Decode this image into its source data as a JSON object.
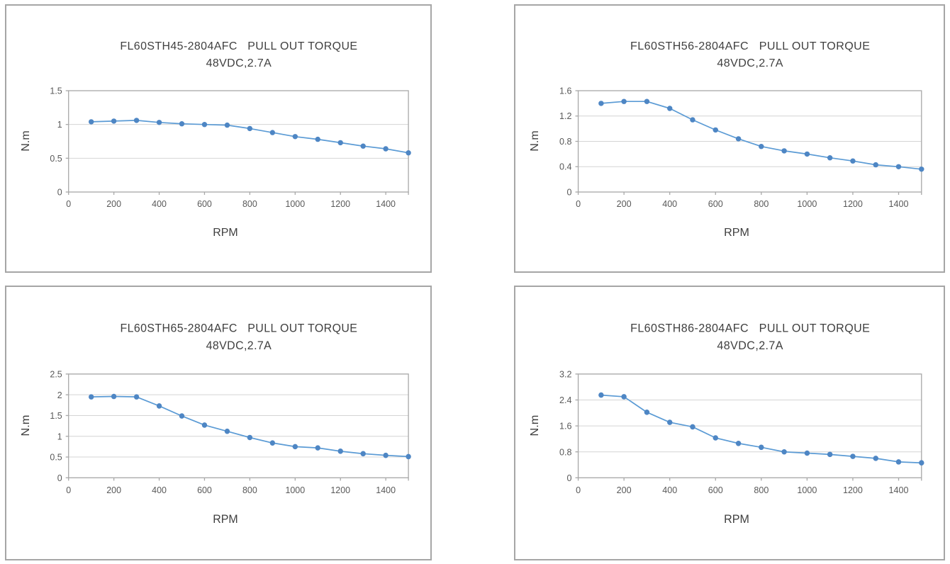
{
  "styles": {
    "line_color": "#5b9bd5",
    "marker_color": "#4e86c4",
    "grid_color": "#d4d4d4",
    "axis_color": "#a8a8a8",
    "panel_border_color": "#a6a6a6",
    "tick_text_color": "#595959",
    "title_text_color": "#404040"
  },
  "chart_data": [
    {
      "id": "fl60sth45",
      "type": "line",
      "title_line1": "FL60STH45-2804AFC   PULL OUT TORQUE",
      "title_line2": "48VDC,2.7A",
      "xlabel": "RPM",
      "ylabel": "N.m",
      "x": [
        100,
        200,
        300,
        400,
        500,
        600,
        700,
        800,
        900,
        1000,
        1100,
        1200,
        1300,
        1400,
        1500
      ],
      "values": [
        1.04,
        1.05,
        1.06,
        1.03,
        1.01,
        1.0,
        0.99,
        0.94,
        0.88,
        0.82,
        0.78,
        0.73,
        0.68,
        0.64,
        0.58
      ],
      "xlim": [
        0,
        1500
      ],
      "ylim": [
        0,
        1.5
      ],
      "xticks": [
        0,
        200,
        400,
        600,
        800,
        1000,
        1200,
        1400
      ],
      "yticks": [
        0,
        0.5,
        1,
        1.5
      ],
      "ytick_labels": [
        "0",
        "0.5",
        "1",
        "1.5"
      ],
      "grid": "horizontal-only",
      "legend": "none",
      "marker": "circle"
    },
    {
      "id": "fl60sth56",
      "type": "line",
      "title_line1": "FL60STH56-2804AFC   PULL OUT TORQUE",
      "title_line2": "48VDC,2.7A",
      "xlabel": "RPM",
      "ylabel": "N.m",
      "x": [
        100,
        200,
        300,
        400,
        500,
        600,
        700,
        800,
        900,
        1000,
        1100,
        1200,
        1300,
        1400,
        1500
      ],
      "values": [
        1.4,
        1.43,
        1.43,
        1.32,
        1.14,
        0.98,
        0.84,
        0.72,
        0.65,
        0.6,
        0.54,
        0.49,
        0.43,
        0.4,
        0.36
      ],
      "xlim": [
        0,
        1500
      ],
      "ylim": [
        0,
        1.6
      ],
      "xticks": [
        0,
        200,
        400,
        600,
        800,
        1000,
        1200,
        1400
      ],
      "yticks": [
        0,
        0.4,
        0.8,
        1.2,
        1.6
      ],
      "ytick_labels": [
        "0",
        "0.4",
        "0.8",
        "1.2",
        "1.6"
      ],
      "grid": "horizontal-only",
      "legend": "none",
      "marker": "circle"
    },
    {
      "id": "fl60sth65",
      "type": "line",
      "title_line1": "FL60STH65-2804AFC   PULL OUT TORQUE",
      "title_line2": "48VDC,2.7A",
      "xlabel": "RPM",
      "ylabel": "N.m",
      "x": [
        100,
        200,
        300,
        400,
        500,
        600,
        700,
        800,
        900,
        1000,
        1100,
        1200,
        1300,
        1400,
        1500
      ],
      "values": [
        1.95,
        1.96,
        1.95,
        1.73,
        1.49,
        1.27,
        1.12,
        0.97,
        0.84,
        0.75,
        0.72,
        0.64,
        0.58,
        0.54,
        0.51
      ],
      "xlim": [
        0,
        1500
      ],
      "ylim": [
        0,
        2.5
      ],
      "xticks": [
        0,
        200,
        400,
        600,
        800,
        1000,
        1200,
        1400
      ],
      "yticks": [
        0,
        0.5,
        1,
        1.5,
        2,
        2.5
      ],
      "ytick_labels": [
        "0",
        "0.5",
        "1",
        "1.5",
        "2",
        "2.5"
      ],
      "grid": "horizontal-only",
      "legend": "none",
      "marker": "circle"
    },
    {
      "id": "fl60sth86",
      "type": "line",
      "title_line1": "FL60STH86-2804AFC   PULL OUT TORQUE",
      "title_line2": "48VDC,2.7A",
      "xlabel": "RPM",
      "ylabel": "N.m",
      "x": [
        100,
        200,
        300,
        400,
        500,
        600,
        700,
        800,
        900,
        1000,
        1100,
        1200,
        1300,
        1400,
        1500
      ],
      "values": [
        2.55,
        2.5,
        2.02,
        1.71,
        1.57,
        1.23,
        1.06,
        0.94,
        0.8,
        0.76,
        0.72,
        0.66,
        0.6,
        0.49,
        0.46
      ],
      "xlim": [
        0,
        1500
      ],
      "ylim": [
        0,
        3.2
      ],
      "xticks": [
        0,
        200,
        400,
        600,
        800,
        1000,
        1200,
        1400
      ],
      "yticks": [
        0,
        0.8,
        1.6,
        2.4,
        3.2
      ],
      "ytick_labels": [
        "0",
        "0.8",
        "1.6",
        "2.4",
        "3.2"
      ],
      "grid": "horizontal-only",
      "legend": "none",
      "marker": "circle"
    }
  ]
}
